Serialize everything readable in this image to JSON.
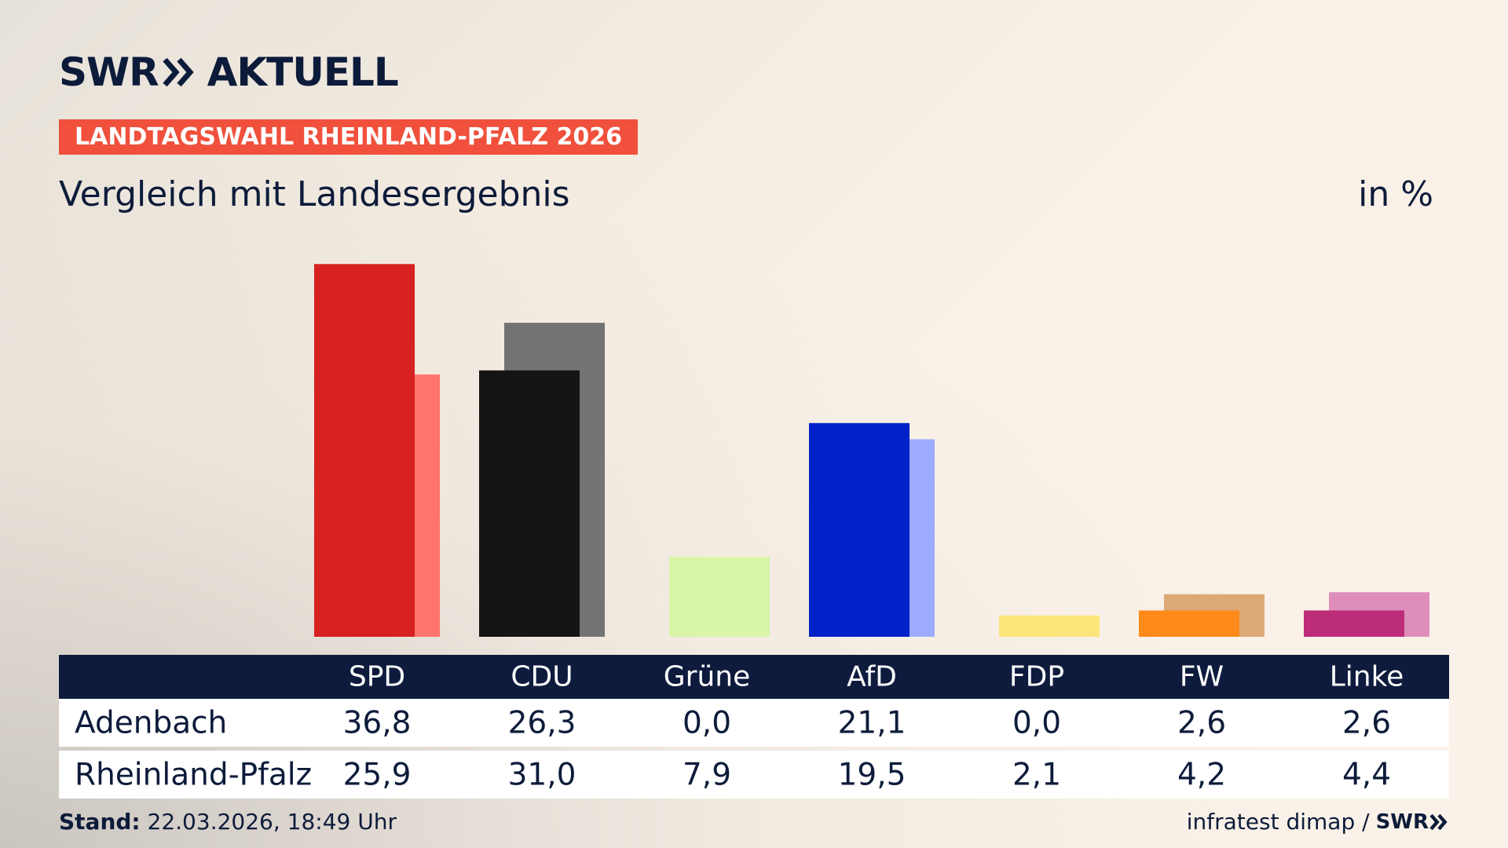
{
  "brand": {
    "name_left": "SWR",
    "name_right": "AKTUELL",
    "icon": "double-chevron-icon"
  },
  "tag": "LANDTAGSWAHL RHEINLAND-PFALZ 2026",
  "subtitle": "Vergleich mit Landesergebnis",
  "unit": "in %",
  "chart_data": {
    "type": "bar",
    "categories": [
      "SPD",
      "CDU",
      "Grüne",
      "AfD",
      "FDP",
      "FW",
      "Linke"
    ],
    "series": [
      {
        "name": "Adenbach",
        "values": [
          36.8,
          26.3,
          0.0,
          21.1,
          0.0,
          2.6,
          2.6
        ],
        "colors": [
          "#d72020",
          "#141414",
          "#1e9e32",
          "#0022c8",
          "#ffd500",
          "#ff8a1a",
          "#bd2c78"
        ]
      },
      {
        "name": "Rheinland-Pfalz",
        "values": [
          25.9,
          31.0,
          7.9,
          19.5,
          2.1,
          4.2,
          4.4
        ],
        "colors": [
          "#ff756d",
          "#737373",
          "#d8f5a8",
          "#9dabff",
          "#fde57a",
          "#dda977",
          "#df8ebb"
        ]
      }
    ],
    "ylim": [
      0,
      40
    ]
  },
  "table": {
    "header": [
      "SPD",
      "CDU",
      "Grüne",
      "AfD",
      "FDP",
      "FW",
      "Linke"
    ],
    "rows": [
      {
        "label": "Adenbach",
        "values": [
          "36,8",
          "26,3",
          "0,0",
          "21,1",
          "0,0",
          "2,6",
          "2,6"
        ]
      },
      {
        "label": "Rheinland-Pfalz",
        "values": [
          "25,9",
          "31,0",
          "7,9",
          "19,5",
          "2,1",
          "4,2",
          "4,4"
        ]
      }
    ]
  },
  "footer": {
    "stand_label": "Stand:",
    "stand_value": "22.03.2026, 18:49 Uhr",
    "source": "infratest dimap /",
    "source_brand": "SWR"
  }
}
